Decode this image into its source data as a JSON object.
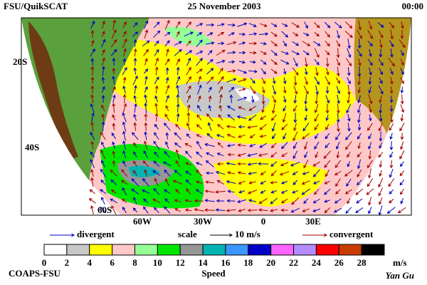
{
  "header": {
    "source": "FSU/QuikSCAT",
    "date": "25 November 2003",
    "time": "00:00"
  },
  "map": {
    "lat_labels": [
      "20S",
      "40S",
      "60S"
    ],
    "lon_labels": [
      "60W",
      "30W",
      "0",
      "30E"
    ]
  },
  "legend": {
    "divergent": "divergent",
    "scale": "scale",
    "scale_value": "10 m/s",
    "convergent": "convergent",
    "divergent_color": "#0000c0",
    "convergent_color": "#a00000"
  },
  "colorbar": {
    "ticks": [
      0,
      2,
      4,
      6,
      8,
      10,
      12,
      14,
      16,
      18,
      20,
      22,
      24,
      26,
      28
    ],
    "colors": [
      "#ffffff",
      "#c8c8c8",
      "#ffff00",
      "#ffc8c8",
      "#96ff96",
      "#00e600",
      "#969696",
      "#00b4b4",
      "#3c96ff",
      "#0000c8",
      "#ff64ff",
      "#b48cff",
      "#ff0000",
      "#c83c00",
      "#000000"
    ],
    "unit": "m/s",
    "label": "Speed"
  },
  "footer": {
    "credit": "COAPS-FSU",
    "author": "Yan Gu"
  }
}
